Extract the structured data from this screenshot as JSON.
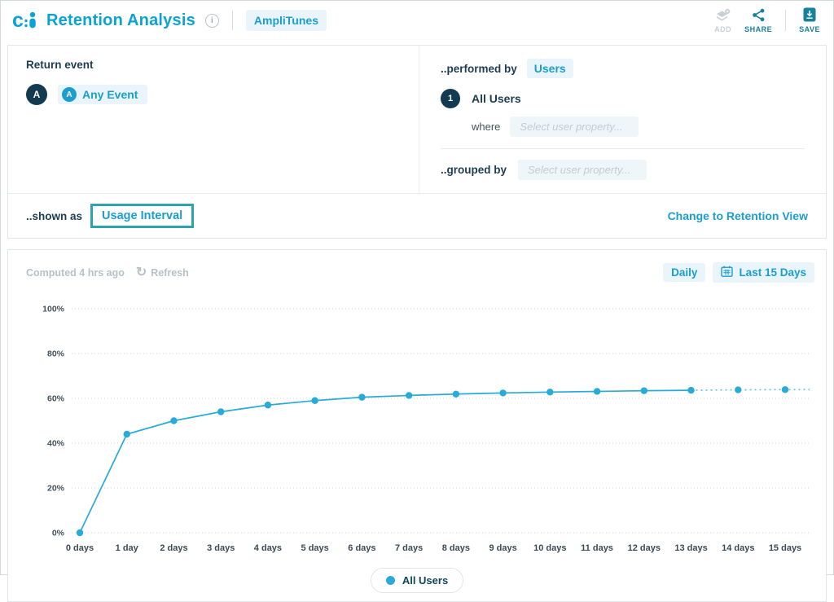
{
  "header": {
    "title": "Retention Analysis",
    "badge": "AmpliTunes",
    "actions": {
      "add": "ADD",
      "share": "SHARE",
      "save": "SAVE"
    }
  },
  "builder": {
    "return_event": {
      "label": "Return event",
      "letter": "A",
      "event_icon_letter": "A",
      "event_name": "Any Event"
    },
    "performed_by": {
      "label": "..performed by",
      "value": "Users"
    },
    "segment": {
      "number": "1",
      "name": "All Users",
      "where_label": "where",
      "where_placeholder": "Select user property..."
    },
    "grouped_by": {
      "label": "..grouped by",
      "placeholder": "Select user property..."
    }
  },
  "shown_as": {
    "label": "..shown as",
    "value": "Usage Interval",
    "change_link": "Change to Retention View"
  },
  "chart_card": {
    "computed": "Computed 4 hrs ago",
    "refresh": "Refresh",
    "interval_button": "Daily",
    "range_button": "Last 15 Days"
  },
  "legend": {
    "label": "All Users"
  },
  "colors": {
    "brand_teal": "#0ba3d3",
    "link_teal": "#1b9ecf",
    "dark_navy": "#123a50",
    "line": "#29abd8",
    "line_projection": "#66c3e3",
    "pill_bg": "#e9f5fb",
    "highlight_border": "#2ea3ae"
  },
  "chart_data": {
    "type": "line",
    "title": "",
    "xlabel": "",
    "ylabel": "",
    "categories": [
      "0 days",
      "1 day",
      "2 days",
      "3 days",
      "4 days",
      "5 days",
      "6 days",
      "7 days",
      "8 days",
      "9 days",
      "10 days",
      "11 days",
      "12 days",
      "13 days",
      "14 days",
      "15 days"
    ],
    "series": [
      {
        "name": "All Users",
        "values": [
          0,
          44,
          50,
          54,
          57,
          59,
          60.5,
          61.3,
          61.9,
          62.4,
          62.8,
          63.1,
          63.4,
          63.6,
          63.8,
          63.9
        ]
      }
    ],
    "yticks": [
      0,
      20,
      40,
      60,
      80,
      100
    ],
    "ylim": [
      0,
      100
    ],
    "grid": "horizontal-dotted",
    "solid_until_index": 13,
    "projection_dotted": true,
    "legend_position": "bottom"
  }
}
